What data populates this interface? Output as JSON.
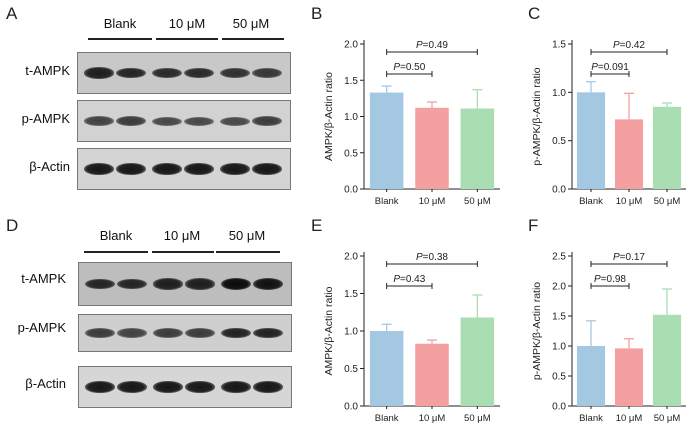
{
  "panels": {
    "A": "A",
    "B": "B",
    "C": "C",
    "D": "D",
    "E": "E",
    "F": "F"
  },
  "blots": [
    {
      "id": "A",
      "groups": [
        "Blank",
        "10 μM",
        "50 μM"
      ],
      "rows": [
        {
          "label": "t-AMPK",
          "bg": "#c8c8c8",
          "intensity": [
            0.85,
            0.8,
            0.75,
            0.75,
            0.7,
            0.65
          ]
        },
        {
          "label": "p-AMPK",
          "bg": "#d2d2d2",
          "intensity": [
            0.55,
            0.6,
            0.5,
            0.5,
            0.5,
            0.6
          ]
        },
        {
          "label": "β-Actin",
          "bg": "#d4d4d4",
          "intensity": [
            0.9,
            0.9,
            0.9,
            0.9,
            0.9,
            0.9
          ]
        }
      ]
    },
    {
      "id": "D",
      "groups": [
        "Blank",
        "10 μM",
        "50 μM"
      ],
      "rows": [
        {
          "label": "t-AMPK",
          "bg": "#bdbdbd",
          "intensity": [
            0.8,
            0.8,
            0.85,
            0.85,
            1.0,
            0.95
          ]
        },
        {
          "label": "p-AMPK",
          "bg": "#cfcfcf",
          "intensity": [
            0.6,
            0.55,
            0.6,
            0.6,
            0.8,
            0.8
          ]
        },
        {
          "label": "β-Actin",
          "bg": "#d6d6d6",
          "intensity": [
            0.9,
            0.9,
            0.9,
            0.9,
            0.9,
            0.9
          ]
        }
      ]
    }
  ],
  "chart_data": [
    {
      "id": "B",
      "type": "bar",
      "categories": [
        "Blank",
        "10 μM",
        "50 μM"
      ],
      "values": [
        1.33,
        1.12,
        1.11
      ],
      "errors": [
        0.09,
        0.08,
        0.26
      ],
      "colors": [
        "#a5c8e2",
        "#f4a0a0",
        "#a9ddb2"
      ],
      "ylabel": "AMPK/β-Actin ratio",
      "ylim": [
        0,
        2.0
      ],
      "yticks": [
        "0.0",
        "0.5",
        "1.0",
        "1.5",
        "2.0"
      ],
      "annotations": [
        {
          "text": "P=0.50",
          "from": 0,
          "to": 1
        },
        {
          "text": "P=0.49",
          "from": 0,
          "to": 2
        }
      ]
    },
    {
      "id": "C",
      "type": "bar",
      "categories": [
        "Blank",
        "10 μM",
        "50 μM"
      ],
      "values": [
        1.0,
        0.72,
        0.85
      ],
      "errors": [
        0.11,
        0.27,
        0.04
      ],
      "colors": [
        "#a5c8e2",
        "#f4a0a0",
        "#a9ddb2"
      ],
      "ylabel": "p-AMPK/β-Actin ratio",
      "ylim": [
        0,
        1.5
      ],
      "yticks": [
        "0.0",
        "0.5",
        "1.0",
        "1.5"
      ],
      "annotations": [
        {
          "text": "P=0.091",
          "from": 0,
          "to": 1
        },
        {
          "text": "P=0.42",
          "from": 0,
          "to": 2
        }
      ]
    },
    {
      "id": "E",
      "type": "bar",
      "categories": [
        "Blank",
        "10 μM",
        "50 μM"
      ],
      "values": [
        1.0,
        0.83,
        1.18
      ],
      "errors": [
        0.09,
        0.05,
        0.3
      ],
      "colors": [
        "#a5c8e2",
        "#f4a0a0",
        "#a9ddb2"
      ],
      "ylabel": "AMPK/β-Actin ratio",
      "ylim": [
        0,
        2.0
      ],
      "yticks": [
        "0.0",
        "0.5",
        "1.0",
        "1.5",
        "2.0"
      ],
      "annotations": [
        {
          "text": "P=0.43",
          "from": 0,
          "to": 1
        },
        {
          "text": "P=0.38",
          "from": 0,
          "to": 2
        }
      ]
    },
    {
      "id": "F",
      "type": "bar",
      "categories": [
        "Blank",
        "10 μM",
        "50 μM"
      ],
      "values": [
        1.0,
        0.96,
        1.52
      ],
      "errors": [
        0.42,
        0.16,
        0.43
      ],
      "colors": [
        "#a5c8e2",
        "#f4a0a0",
        "#a9ddb2"
      ],
      "ylabel": "p-AMPK/β-Actin ratio",
      "ylim": [
        0,
        2.5
      ],
      "yticks": [
        "0.0",
        "0.5",
        "1.0",
        "1.5",
        "2.0",
        "2.5"
      ],
      "annotations": [
        {
          "text": "P=0.98",
          "from": 0,
          "to": 1
        },
        {
          "text": "P=0.17",
          "from": 0,
          "to": 2
        }
      ]
    }
  ]
}
